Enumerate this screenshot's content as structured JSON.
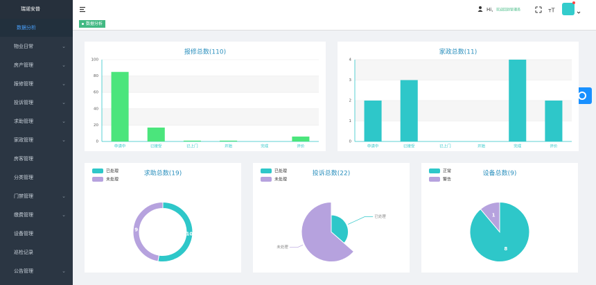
{
  "sidebar": {
    "logo": "瑞诺安普",
    "menu": [
      {
        "label": "数据分析",
        "active": true,
        "expandable": false
      },
      {
        "label": "物业日常",
        "active": false,
        "expandable": true
      },
      {
        "label": "房产管理",
        "active": false,
        "expandable": true
      },
      {
        "label": "报修管理",
        "active": false,
        "expandable": true
      },
      {
        "label": "投诉管理",
        "active": false,
        "expandable": true
      },
      {
        "label": "求助管理",
        "active": false,
        "expandable": true
      },
      {
        "label": "家政管理",
        "active": false,
        "expandable": true
      },
      {
        "label": "房客管理",
        "active": false,
        "expandable": false
      },
      {
        "label": "分类管理",
        "active": false,
        "expandable": false
      },
      {
        "label": "门禁管理",
        "active": false,
        "expandable": true
      },
      {
        "label": "缴费管理",
        "active": false,
        "expandable": true
      },
      {
        "label": "设备管理",
        "active": false,
        "expandable": false
      },
      {
        "label": "巡检记录",
        "active": false,
        "expandable": false
      },
      {
        "label": "公告管理",
        "active": false,
        "expandable": true
      }
    ]
  },
  "header": {
    "greeting": "Hi,",
    "user": "欢迎回到管理员"
  },
  "tab": {
    "label": "数据分析"
  },
  "chart_data": [
    {
      "type": "bar",
      "title": "报修总数(110)",
      "categories": [
        "申请中",
        "已接受",
        "已上门",
        "开始",
        "完成",
        "评价"
      ],
      "values": [
        85,
        17,
        1,
        1,
        0,
        6
      ],
      "color": "#4be57c",
      "ylim": [
        0,
        100
      ],
      "yticks": [
        0,
        20,
        40,
        60,
        80,
        100
      ],
      "grid": true
    },
    {
      "type": "bar",
      "title": "家政总数(11)",
      "categories": [
        "申请中",
        "已接受",
        "已上门",
        "开始",
        "完成",
        "评价"
      ],
      "values": [
        2,
        3,
        0,
        0,
        4,
        2
      ],
      "color": "#2ec7c9",
      "ylim": [
        0,
        4
      ],
      "yticks": [
        0,
        1,
        2,
        3,
        4
      ],
      "grid": true
    },
    {
      "type": "donut",
      "title": "求助总数(19)",
      "categories": [
        "已处理",
        "未处理"
      ],
      "values": [
        10,
        9
      ],
      "colors": [
        "#2ec7c9",
        "#b6a2de"
      ]
    },
    {
      "type": "rose",
      "title": "投诉总数(22)",
      "categories": [
        "已处理",
        "未处理"
      ],
      "values": [
        8,
        14
      ],
      "colors": [
        "#2ec7c9",
        "#b6a2de"
      ]
    },
    {
      "type": "pie",
      "title": "设备总数(9)",
      "categories": [
        "正常",
        "警告"
      ],
      "values": [
        8,
        1
      ],
      "colors": [
        "#2ec7c9",
        "#b6a2de"
      ]
    }
  ]
}
